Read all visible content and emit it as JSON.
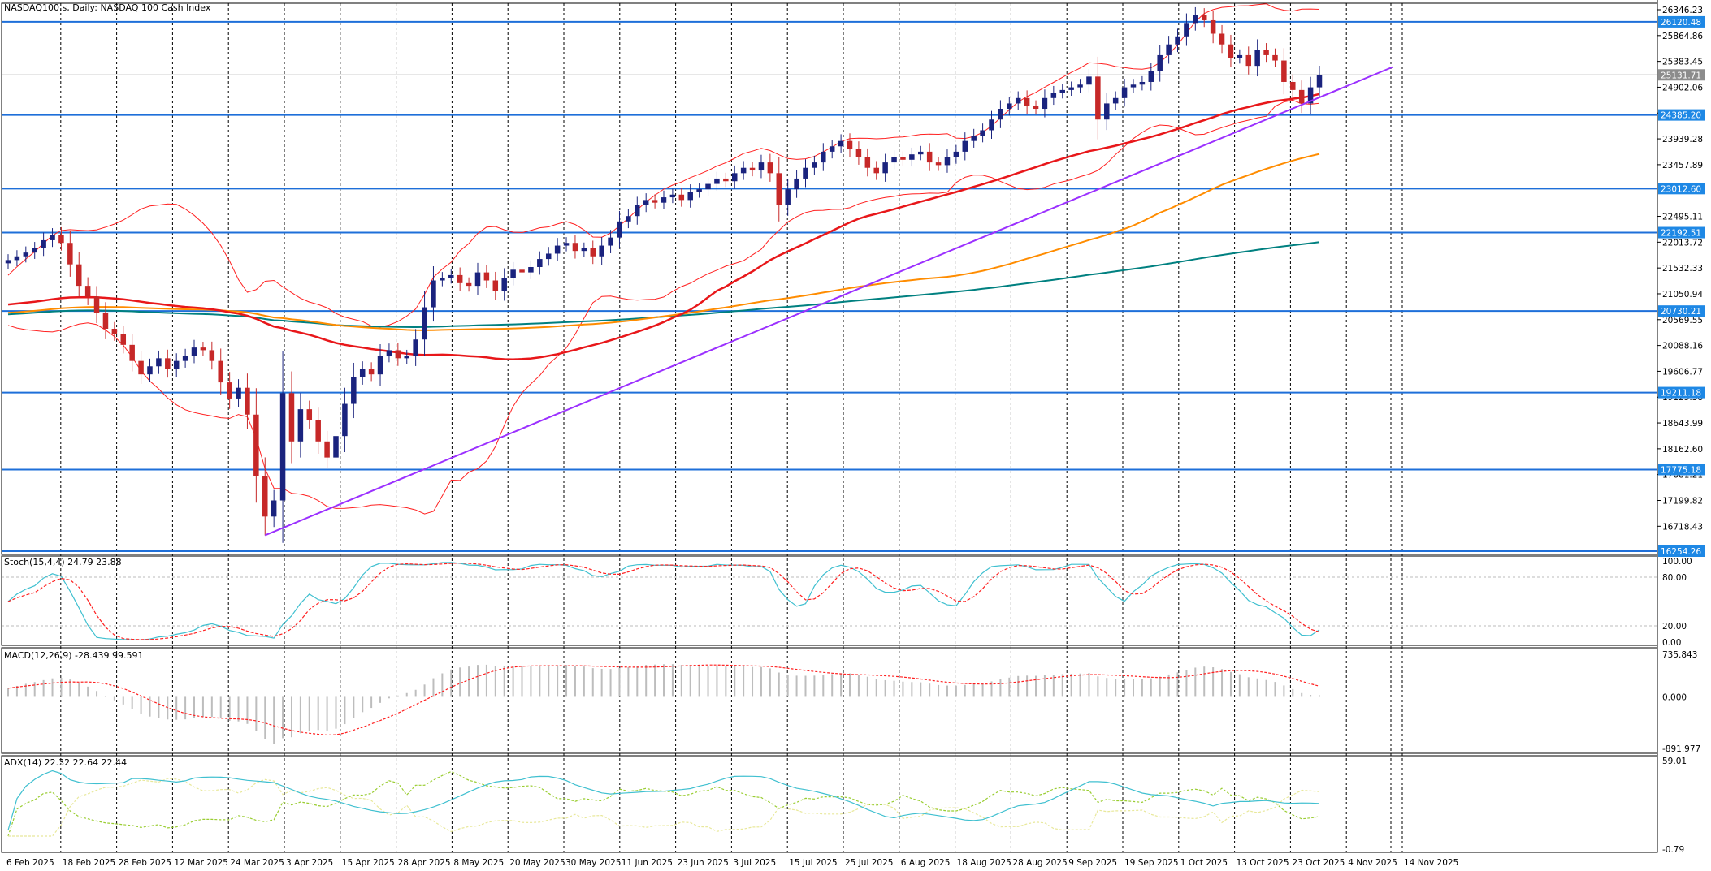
{
  "colors": {
    "bull": "#1a237e",
    "bear": "#c62828",
    "hline": "#1e6fd9",
    "tag_blue": "#1e88e5",
    "tag_grey": "#8c8c8c",
    "ma50": "#e8171a",
    "ma100": "#ff8c00",
    "ma200": "#008080",
    "bb": "#ff2020",
    "trend": "#9b30ff",
    "stoch_main": "#40c0d0",
    "stoch_signal": "#ff2020",
    "macd_hist": "#bdbdbd",
    "macd_signal": "#ff2020",
    "adx": "#40c0d0",
    "di_plus": "#9acd32",
    "di_minus": "#e8e89a"
  },
  "chart_data": [
    {
      "type": "candlestick",
      "title": "NASDAQ100.s, Daily:  NASDAQ 100 Cash Index",
      "ylim": [
        16254.26,
        26346.23
      ],
      "y_ticks": [
        "26346.23",
        "25864.86",
        "25383.45",
        "24902.06",
        "24420.67",
        "23939.28",
        "23457.89",
        "22495.11",
        "22013.72",
        "21532.33",
        "21050.94",
        "20569.55",
        "20088.16",
        "19606.77",
        "19125.38",
        "18643.99",
        "18162.60",
        "17681.21",
        "17199.82",
        "16718.43"
      ],
      "x_labels": [
        "6 Feb 2025",
        "18 Feb 2025",
        "28 Feb 2025",
        "12 Mar 2025",
        "24 Mar 2025",
        "3 Apr 2025",
        "15 Apr 2025",
        "28 Apr 2025",
        "8 May 2025",
        "20 May 2025",
        "30 May 2025",
        "11 Jun 2025",
        "23 Jun 2025",
        "3 Jul 2025",
        "15 Jul 2025",
        "25 Jul 2025",
        "6 Aug 2025",
        "18 Aug 2025",
        "28 Aug 2025",
        "9 Sep 2025",
        "19 Sep 2025",
        "1 Oct 2025",
        "13 Oct 2025",
        "23 Oct 2025",
        "4 Nov 2025",
        "14 Nov 2025"
      ],
      "current_price": "25131.71",
      "horizontal_levels": [
        "26120.48",
        "24385.20",
        "23012.60",
        "22192.51",
        "20730.21",
        "19211.18",
        "17775.18",
        "16254.26"
      ],
      "closes": [
        21680,
        21750,
        21820,
        21900,
        22050,
        22150,
        22000,
        21600,
        21200,
        21000,
        20700,
        20400,
        20300,
        20100,
        19800,
        19550,
        19700,
        19850,
        19650,
        19800,
        19900,
        20050,
        20000,
        19800,
        19400,
        19100,
        19300,
        18800,
        17650,
        16900,
        17200,
        19200,
        18300,
        18900,
        18700,
        18300,
        18000,
        18400,
        19000,
        19500,
        19650,
        19550,
        19900,
        20000,
        19850,
        19900,
        20200,
        20800,
        21300,
        21350,
        21400,
        21250,
        21200,
        21450,
        21300,
        21100,
        21350,
        21500,
        21450,
        21550,
        21700,
        21800,
        21950,
        22000,
        21850,
        21900,
        21750,
        21950,
        22100,
        22400,
        22500,
        22700,
        22800,
        22750,
        22850,
        22900,
        22800,
        22950,
        23000,
        23100,
        23200,
        23150,
        23300,
        23400,
        23350,
        23500,
        23300,
        22700,
        23000,
        23200,
        23400,
        23500,
        23700,
        23800,
        23900,
        23750,
        23600,
        23400,
        23300,
        23500,
        23600,
        23550,
        23650,
        23700,
        23500,
        23450,
        23600,
        23700,
        23900,
        24000,
        24100,
        24300,
        24500,
        24600,
        24700,
        24550,
        24500,
        24700,
        24800,
        24850,
        24900,
        24950,
        25100,
        24300,
        24600,
        24700,
        24900,
        24950,
        25000,
        25200,
        25500,
        25700,
        25850,
        26100,
        26250,
        26150,
        25900,
        25700,
        25450,
        25500,
        25300,
        25600,
        25500,
        25400,
        25000,
        24850,
        24600,
        24900,
        25131.71
      ],
      "series": [
        {
          "name": "MA 50"
        },
        {
          "name": "MA 100"
        },
        {
          "name": "MA 200"
        },
        {
          "name": "Bollinger Bands"
        },
        {
          "name": "Trendline"
        }
      ]
    },
    {
      "type": "line",
      "title": "Stoch(15,4,4) 24.79 23.88",
      "y_ticks": [
        "100.00",
        "80.00",
        "20.00",
        "0.00"
      ],
      "ylim": [
        0,
        100
      ],
      "series": [
        {
          "name": "main"
        },
        {
          "name": "signal"
        }
      ]
    },
    {
      "type": "bar",
      "title": "MACD(12,26,9) -28.439 99.591",
      "y_ticks": [
        "735.843",
        "0.000",
        "-891.977"
      ],
      "ylim": [
        -891.977,
        735.843
      ],
      "series": [
        {
          "name": "histogram"
        },
        {
          "name": "signal"
        }
      ]
    },
    {
      "type": "line",
      "title": "ADX(14) 22.32 22.64 22.44",
      "y_ticks": [
        "59.01",
        "-0.79"
      ],
      "ylim": [
        -0.79,
        59.01
      ],
      "series": [
        {
          "name": "ADX"
        },
        {
          "name": "+DI"
        },
        {
          "name": "-DI"
        }
      ]
    }
  ]
}
